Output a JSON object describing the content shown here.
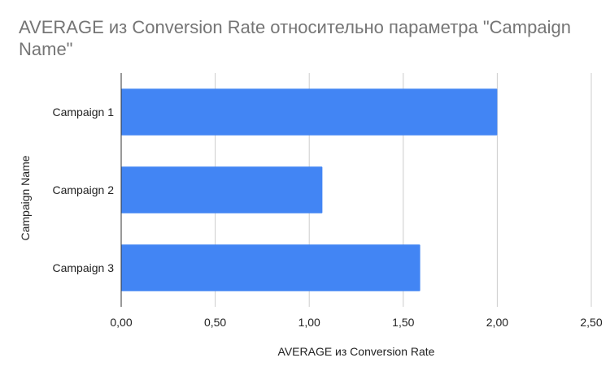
{
  "chart_data": {
    "type": "bar",
    "orientation": "horizontal",
    "title": "AVERAGE из Conversion Rate относительно параметра \"Campaign Name\"",
    "xlabel": "AVERAGE из Conversion Rate",
    "ylabel": "Campaign Name",
    "categories": [
      "Campaign 1",
      "Campaign 2",
      "Campaign 3"
    ],
    "series": [
      {
        "values": [
          2.0,
          1.07,
          1.59
        ]
      }
    ],
    "xlim": [
      0,
      2.5
    ],
    "x_ticks": [
      "0,00",
      "0,50",
      "1,00",
      "1,50",
      "2,00",
      "2,50"
    ],
    "grid": "vertical",
    "legend": "none",
    "colors": {
      "bar": "#4285f4",
      "grid": "#cccccc",
      "axis": "#333333",
      "title": "#757575"
    }
  }
}
